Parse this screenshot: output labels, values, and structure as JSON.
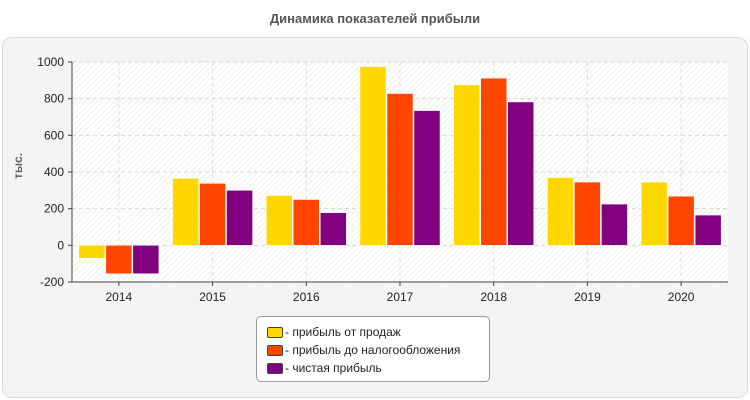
{
  "chart_data": {
    "type": "bar",
    "title": "Динамика показателей прибыли",
    "ylabel": "тыс.",
    "xlabel": "",
    "categories": [
      "2014",
      "2015",
      "2016",
      "2017",
      "2018",
      "2019",
      "2020"
    ],
    "ylim": [
      -200,
      1000
    ],
    "yticks": [
      -200,
      0,
      200,
      400,
      600,
      800,
      1000
    ],
    "grid": true,
    "legend_position": "bottom",
    "series": [
      {
        "name": "- прибыль от продаж",
        "color": "#FFD700",
        "values": [
          -70,
          365,
          272,
          975,
          875,
          370,
          345
        ]
      },
      {
        "name": "- прибыль до налогообложения",
        "color": "#FF4500",
        "values": [
          -155,
          338,
          250,
          828,
          912,
          345,
          268
        ]
      },
      {
        "name": "- чистая прибыль",
        "color": "#800080",
        "values": [
          -155,
          300,
          178,
          735,
          782,
          225,
          165
        ]
      }
    ]
  }
}
